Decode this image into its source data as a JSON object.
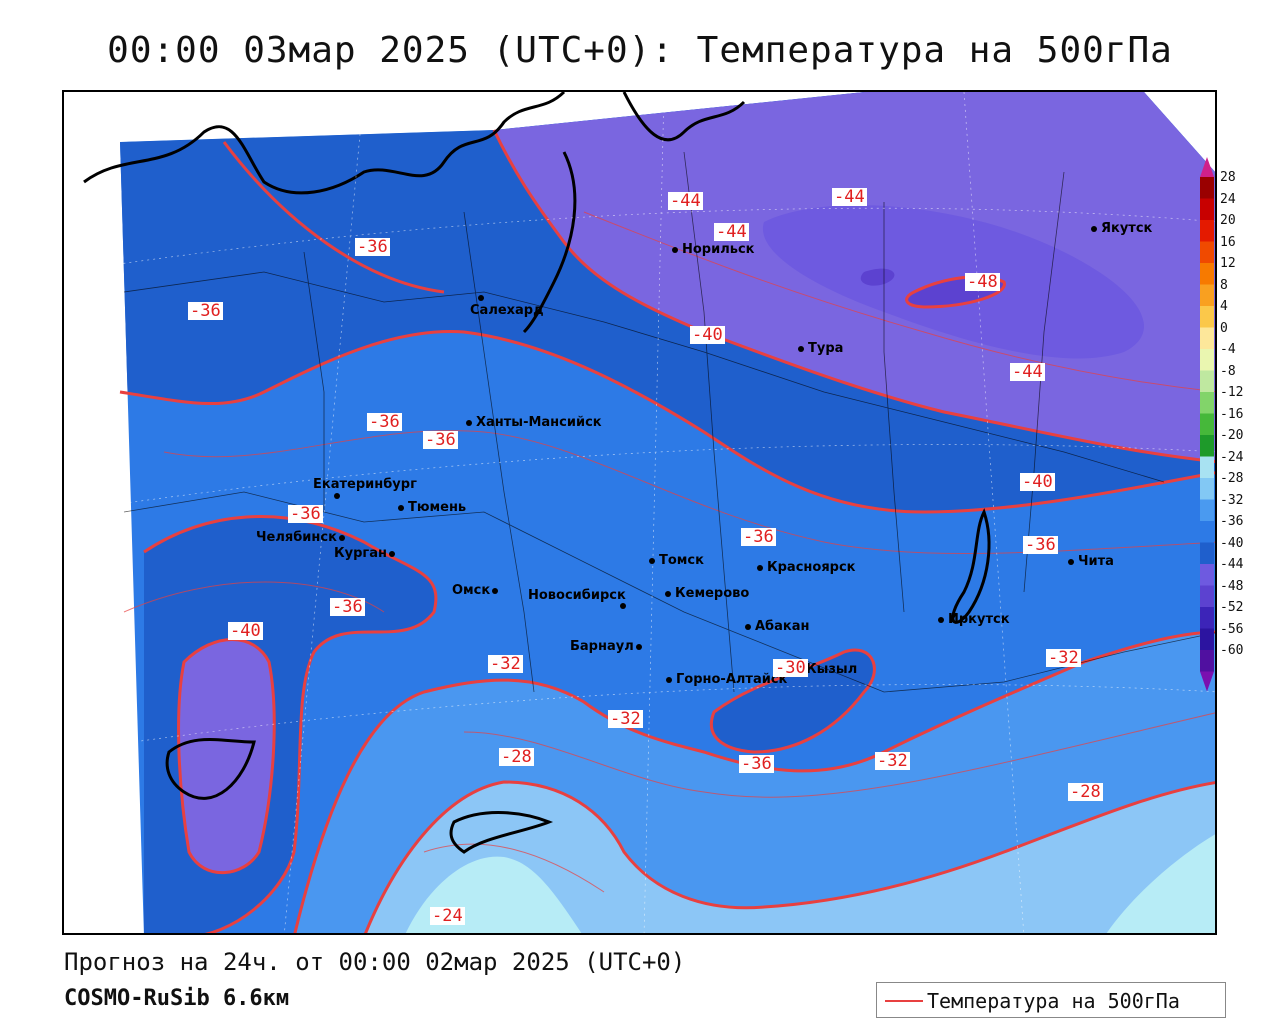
{
  "title": "00:00 03мар 2025 (UTC+0): Температура на 500гПа",
  "forecast_text": "Прогноз на 24ч. от 00:00 02мар 2025 (UTC+0)",
  "model_text": "COSMO-RuSib 6.6км",
  "legend_label": "Температура на 500гПа",
  "colors": {
    "contour_line": "#e84040",
    "level_m48": "#5c42d0",
    "level_m44": "#7a66e0",
    "level_m40": "#1f5fcc",
    "level_m36": "#2d7ae6",
    "level_m32": "#4a97f0",
    "level_m28": "#8cc6f6",
    "level_m24": "#b7ecf6"
  },
  "colorbar": {
    "labels": [
      "28",
      "24",
      "20",
      "16",
      "12",
      "8",
      "4",
      "0",
      "-4",
      "-8",
      "-12",
      "-16",
      "-20",
      "-24",
      "-28",
      "-32",
      "-36",
      "-40",
      "-44",
      "-48",
      "-52",
      "-56",
      "-60"
    ],
    "colors": [
      "#9a0000",
      "#c80000",
      "#e41a00",
      "#f04a00",
      "#f77a00",
      "#f9a020",
      "#fbc84a",
      "#fde79a",
      "#eaf6b0",
      "#bfe8a0",
      "#82d46a",
      "#46b83a",
      "#1e9a2a",
      "#a8e2f2",
      "#82c8f4",
      "#4a9af0",
      "#2d7ae6",
      "#1f5fcc",
      "#6e5ae0",
      "#5c42d0",
      "#3c24b8",
      "#2c14a0",
      "#5010a0"
    ]
  },
  "cities": [
    {
      "name": "Якутск"
    },
    {
      "name": "Норильск"
    },
    {
      "name": "Салехард"
    },
    {
      "name": "Тура"
    },
    {
      "name": "Ханты-Мансийск"
    },
    {
      "name": "Екатеринбург"
    },
    {
      "name": "Тюмень"
    },
    {
      "name": "Челябинск"
    },
    {
      "name": "Курган"
    },
    {
      "name": "Омск"
    },
    {
      "name": "Новосибирск"
    },
    {
      "name": "Томск"
    },
    {
      "name": "Кемерово"
    },
    {
      "name": "Красноярск"
    },
    {
      "name": "Абакан"
    },
    {
      "name": "Барнаул"
    },
    {
      "name": "Горно-Алтайск"
    },
    {
      "name": "Кызыл"
    },
    {
      "name": "Иркутск"
    },
    {
      "name": "Чита"
    }
  ],
  "contour_labels": [
    "-44",
    "-44",
    "-44",
    "-48",
    "-36",
    "-36",
    "-40",
    "-44",
    "-36",
    "-36",
    "-40",
    "-36",
    "-36",
    "-36",
    "-40",
    "-32",
    "-30",
    "-32",
    "-32",
    "-28",
    "-36",
    "-32",
    "-28",
    "-24"
  ]
}
